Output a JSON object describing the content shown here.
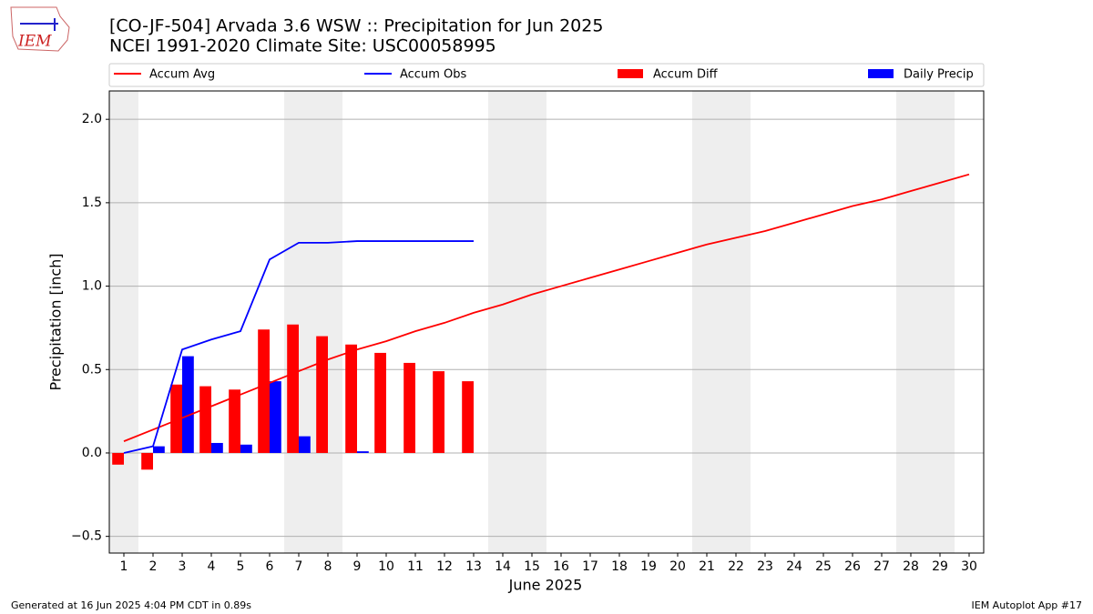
{
  "logo_text": "IEM",
  "footer_left": "Generated at 16 Jun 2025 4:04 PM CDT in 0.89s",
  "footer_right": "IEM Autoplot App #17",
  "chart_data": {
    "type": "combo",
    "title": "[CO-JF-504] Arvada 3.6 WSW :: Precipitation for Jun 2025",
    "subtitle": "NCEI 1991-2020 Climate Site: USC00058995",
    "xlabel": "June 2025",
    "ylabel": "Precipitation [inch]",
    "x": [
      1,
      2,
      3,
      4,
      5,
      6,
      7,
      8,
      9,
      10,
      11,
      12,
      13,
      14,
      15,
      16,
      17,
      18,
      19,
      20,
      21,
      22,
      23,
      24,
      25,
      26,
      27,
      28,
      29,
      30
    ],
    "xlim": [
      0.5,
      30.5
    ],
    "xticks": [
      1,
      2,
      3,
      4,
      5,
      6,
      7,
      8,
      9,
      10,
      11,
      12,
      13,
      14,
      15,
      16,
      17,
      18,
      19,
      20,
      21,
      22,
      23,
      24,
      25,
      26,
      27,
      28,
      29,
      30
    ],
    "ylim": [
      -0.6,
      2.17
    ],
    "yticks": [
      {
        "value": -0.5,
        "label": "−0.5"
      },
      {
        "value": 0,
        "label": "0.0"
      },
      0.5,
      {
        "value": 1,
        "label": "1.0"
      },
      1.5,
      {
        "value": 2,
        "label": "2.0"
      }
    ],
    "grid": "y",
    "shaded_days": [
      1,
      7,
      8,
      14,
      15,
      21,
      22,
      28,
      29
    ],
    "shade_color": "#eeeeee",
    "bar_width": 0.4,
    "series": [
      {
        "name": "Accum Avg",
        "style": "line",
        "color": "#ff0000",
        "values": [
          0.07,
          0.14,
          0.21,
          0.28,
          0.35,
          0.42,
          0.49,
          0.56,
          0.62,
          0.67,
          0.73,
          0.78,
          0.84,
          0.89,
          0.95,
          1.0,
          1.05,
          1.1,
          1.15,
          1.2,
          1.25,
          1.29,
          1.33,
          1.38,
          1.43,
          1.48,
          1.52,
          1.57,
          1.62,
          1.67
        ]
      },
      {
        "name": "Accum Obs",
        "style": "line",
        "color": "#0000ff",
        "values": [
          0,
          0.04,
          0.62,
          0.68,
          0.73,
          1.16,
          1.26,
          1.26,
          1.27,
          1.27,
          1.27,
          1.27,
          1.27,
          null,
          null,
          null,
          null,
          null,
          null,
          null,
          null,
          null,
          null,
          null,
          null,
          null,
          null,
          null,
          null,
          null
        ]
      },
      {
        "name": "Accum Diff",
        "style": "bar",
        "offset": -1,
        "color": "#ff0000",
        "values": [
          -0.07,
          -0.1,
          0.41,
          0.4,
          0.38,
          0.74,
          0.77,
          0.7,
          0.65,
          0.6,
          0.54,
          0.49,
          0.43,
          null,
          null,
          null,
          null,
          null,
          null,
          null,
          null,
          null,
          null,
          null,
          null,
          null,
          null,
          null,
          null,
          null
        ]
      },
      {
        "name": "Daily Precip",
        "style": "bar",
        "offset": 0,
        "color": "#0000ff",
        "values": [
          0,
          0.04,
          0.58,
          0.06,
          0.05,
          0.43,
          0.1,
          0,
          0.01,
          0,
          0,
          0,
          0,
          null,
          null,
          null,
          null,
          null,
          null,
          null,
          null,
          null,
          null,
          null,
          null,
          null,
          null,
          null,
          null,
          null
        ]
      }
    ]
  }
}
